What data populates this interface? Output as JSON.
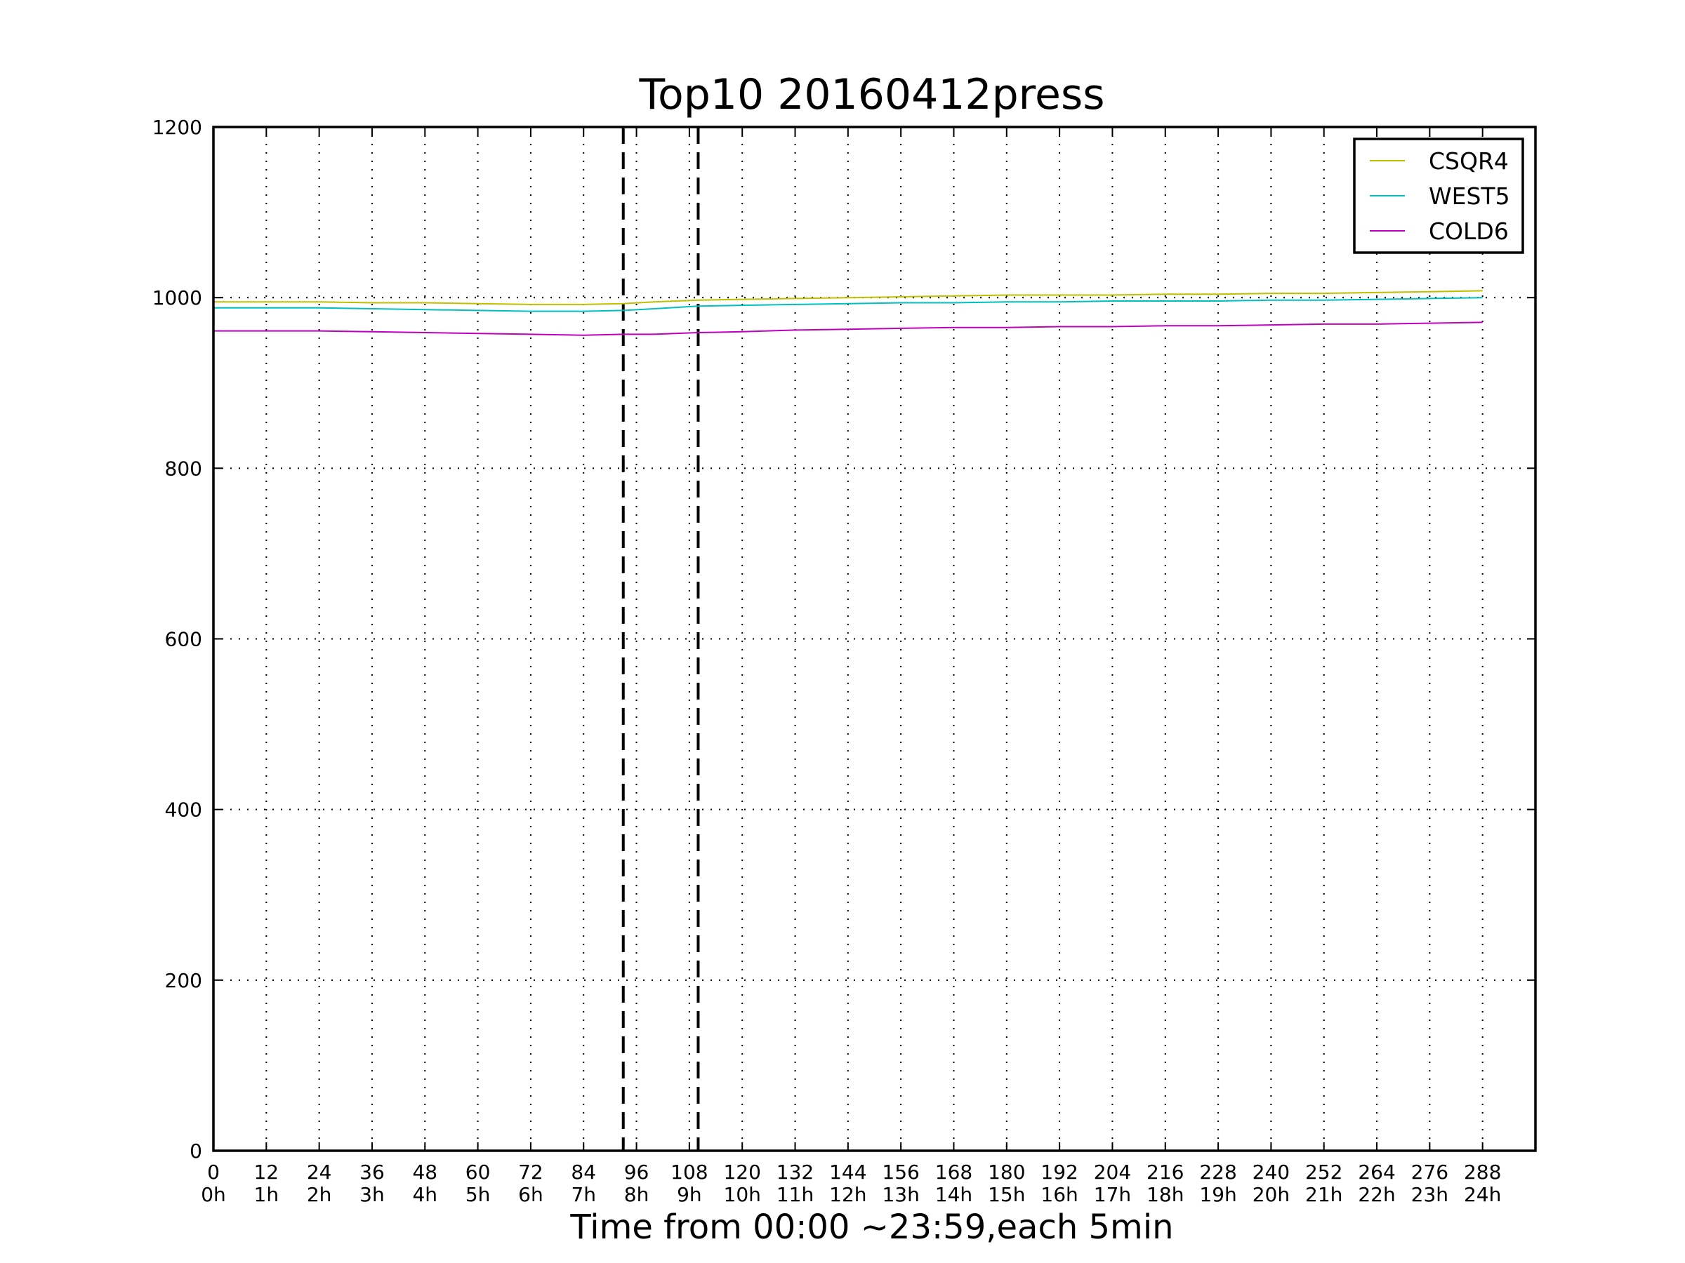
{
  "chart_data": {
    "type": "line",
    "title": "Top10 20160412press",
    "xlabel": "Time from 00:00 ~23:59,each 5min",
    "ylabel": "",
    "xlim": [
      0,
      300
    ],
    "ylim": [
      0,
      1200
    ],
    "grid": true,
    "legend_position": "top-right",
    "x_ticks": [
      0,
      12,
      24,
      36,
      48,
      60,
      72,
      84,
      96,
      108,
      120,
      132,
      144,
      156,
      168,
      180,
      192,
      204,
      216,
      228,
      240,
      252,
      264,
      276,
      288
    ],
    "x_tick_hours": [
      "0h",
      "1h",
      "2h",
      "3h",
      "4h",
      "5h",
      "6h",
      "7h",
      "8h",
      "9h",
      "10h",
      "11h",
      "12h",
      "13h",
      "14h",
      "15h",
      "16h",
      "17h",
      "18h",
      "19h",
      "20h",
      "21h",
      "22h",
      "23h",
      "24h"
    ],
    "y_ticks": [
      0,
      200,
      400,
      600,
      800,
      1000,
      1200
    ],
    "vertical_markers": [
      93,
      110
    ],
    "x": [
      0,
      12,
      24,
      36,
      48,
      60,
      72,
      84,
      93,
      100,
      110,
      120,
      132,
      144,
      156,
      168,
      180,
      192,
      204,
      216,
      228,
      240,
      252,
      264,
      276,
      288
    ],
    "series": [
      {
        "name": "CSQR4",
        "color": "#bfbf00",
        "values": [
          995,
          995,
          995,
          994,
          994,
          993,
          992,
          992,
          993,
          995,
          997,
          998,
          999,
          1000,
          1001,
          1002,
          1003,
          1003,
          1003,
          1004,
          1004,
          1005,
          1005,
          1006,
          1007,
          1008
        ]
      },
      {
        "name": "WEST5",
        "color": "#00bfbf",
        "values": [
          988,
          988,
          988,
          987,
          986,
          985,
          984,
          984,
          985,
          987,
          990,
          991,
          992,
          993,
          994,
          994,
          995,
          995,
          996,
          996,
          996,
          997,
          997,
          998,
          999,
          1000
        ]
      },
      {
        "name": "COLD6",
        "color": "#bf00bf",
        "values": [
          961,
          961,
          961,
          960,
          959,
          958,
          957,
          956,
          957,
          957,
          959,
          960,
          962,
          963,
          964,
          965,
          965,
          966,
          966,
          967,
          967,
          968,
          969,
          969,
          970,
          971
        ]
      }
    ]
  }
}
